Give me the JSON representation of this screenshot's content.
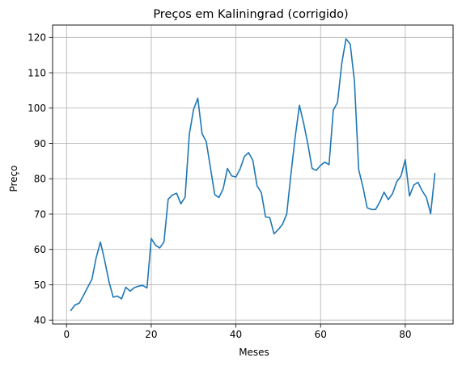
{
  "chart_data": {
    "type": "line",
    "title": "Preços em Kaliningrad (corrigido)",
    "xlabel": "Meses",
    "ylabel": "Preço",
    "xlim": [
      -3.3,
      91.3
    ],
    "ylim": [
      38.9,
      123.5
    ],
    "xticks": [
      0,
      20,
      40,
      60,
      80
    ],
    "yticks": [
      40,
      50,
      60,
      70,
      80,
      90,
      100,
      110,
      120
    ],
    "grid": true,
    "series": [
      {
        "color": "#1f77b4",
        "x": [
          1,
          2,
          3,
          4,
          5,
          6,
          7,
          8,
          9,
          10,
          11,
          12,
          13,
          14,
          15,
          16,
          17,
          18,
          19,
          20,
          21,
          22,
          23,
          24,
          25,
          26,
          27,
          28,
          29,
          30,
          31,
          32,
          33,
          34,
          35,
          36,
          37,
          38,
          39,
          40,
          41,
          42,
          43,
          44,
          45,
          46,
          47,
          48,
          49,
          50,
          51,
          52,
          53,
          54,
          55,
          56,
          57,
          58,
          59,
          60,
          61,
          62,
          63,
          64,
          65,
          66,
          67,
          68,
          69,
          70,
          71,
          72,
          73,
          74,
          75,
          76,
          77,
          78,
          79,
          80,
          81,
          82,
          83,
          84,
          85,
          86,
          87
        ],
        "y": [
          42.7,
          44.3,
          44.8,
          47.0,
          49.3,
          51.6,
          57.7,
          62.1,
          56.9,
          51.0,
          46.5,
          46.8,
          46.0,
          49.3,
          48.2,
          49.2,
          49.6,
          49.8,
          49.1,
          63.1,
          61.2,
          60.4,
          62.1,
          74.2,
          75.4,
          75.9,
          72.9,
          74.8,
          92.6,
          99.6,
          102.8,
          92.8,
          90.5,
          83.0,
          75.5,
          74.7,
          77.2,
          82.9,
          80.8,
          80.5,
          82.8,
          86.3,
          87.4,
          85.2,
          78.0,
          76.1,
          69.2,
          69.0,
          64.4,
          65.6,
          67.1,
          70.0,
          81.3,
          91.8,
          100.8,
          95.7,
          89.8,
          82.9,
          82.4,
          83.8,
          84.7,
          84.0,
          99.4,
          101.6,
          112.6,
          119.6,
          118.1,
          107.6,
          82.6,
          77.7,
          71.8,
          71.3,
          71.3,
          73.5,
          76.2,
          74.1,
          75.8,
          79.2,
          80.8,
          85.4,
          75.1,
          78.2,
          79.0,
          76.6,
          74.7,
          70.1,
          81.5
        ]
      }
    ]
  }
}
